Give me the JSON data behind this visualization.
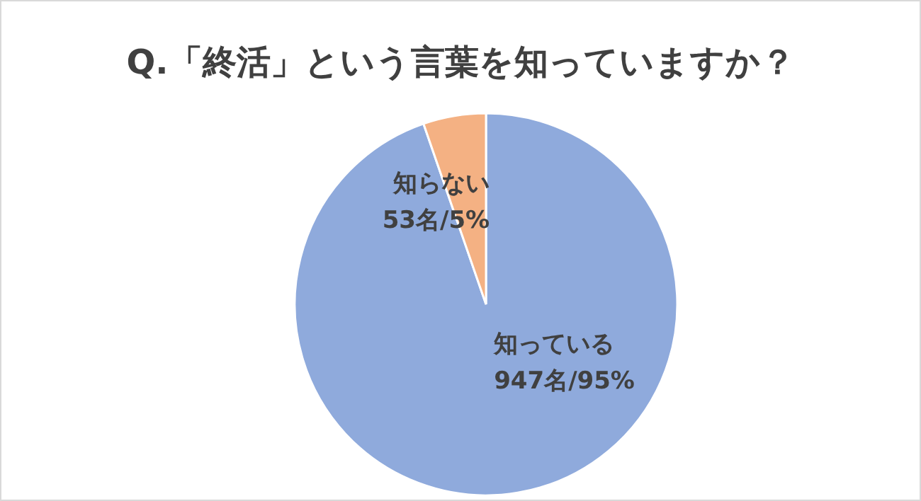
{
  "chart_data": {
    "type": "pie",
    "title": "Q.「終活」という言葉を知っていますか？",
    "categories": [
      "知っている",
      "知らない"
    ],
    "values": [
      947,
      53
    ],
    "value_labels": [
      "947名/95%",
      "53名/5%"
    ],
    "colors": [
      "#8faadc",
      "#f4b183"
    ],
    "legend": false
  }
}
